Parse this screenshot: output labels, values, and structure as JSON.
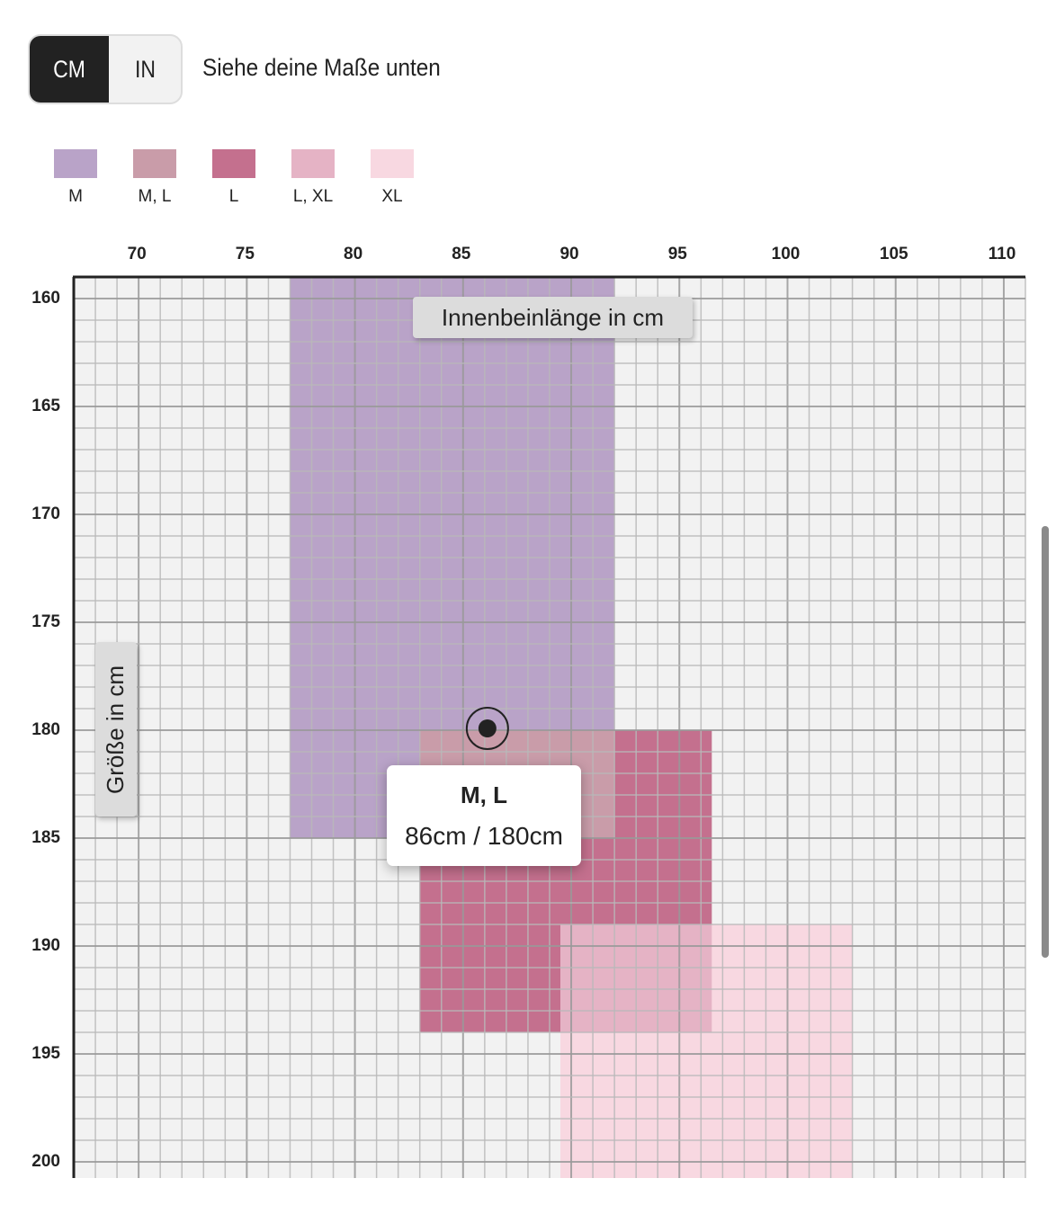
{
  "units": {
    "options": [
      "CM",
      "IN"
    ],
    "selected": "CM"
  },
  "hint": "Siehe deine Maße unten",
  "chart_data": {
    "type": "heatmap",
    "xlabel": "Innenbeinlänge in cm",
    "ylabel": "Größe in cm",
    "xlim": [
      67,
      111
    ],
    "ylim": [
      159,
      200.75
    ],
    "x_ticks": [
      70,
      75,
      80,
      85,
      90,
      95,
      100,
      105,
      110
    ],
    "y_ticks": [
      160,
      165,
      170,
      175,
      180,
      185,
      190,
      195,
      200
    ],
    "grid": true,
    "legend": [
      {
        "label": "M",
        "color": "#b9a3c8"
      },
      {
        "label": "M, L",
        "color": "#c99ca9"
      },
      {
        "label": "L",
        "color": "#c4708e"
      },
      {
        "label": "L, XL",
        "color": "#e5b3c5"
      },
      {
        "label": "XL",
        "color": "#f8d8e1"
      }
    ],
    "regions": [
      {
        "size": "M",
        "x": [
          77,
          92
        ],
        "y": [
          159,
          185
        ],
        "color": "#b9a3c8"
      },
      {
        "size": "L",
        "x": [
          83,
          96.5
        ],
        "y": [
          180,
          194
        ],
        "color": "#c4708e"
      },
      {
        "size": "XL",
        "x": [
          89.5,
          103
        ],
        "y": [
          189,
          200.75
        ],
        "color": "#f8d8e1"
      }
    ],
    "overlaps": [
      {
        "sizes": "M, L",
        "x": [
          83,
          92
        ],
        "y": [
          180,
          185
        ],
        "color": "#c99ca9"
      },
      {
        "sizes": "L, XL",
        "x": [
          89.5,
          96.5
        ],
        "y": [
          189,
          194
        ],
        "color": "#e5b3c5"
      }
    ],
    "marker": {
      "x": 86,
      "y": 180,
      "title": "M, L",
      "value": "86cm / 180cm"
    }
  }
}
